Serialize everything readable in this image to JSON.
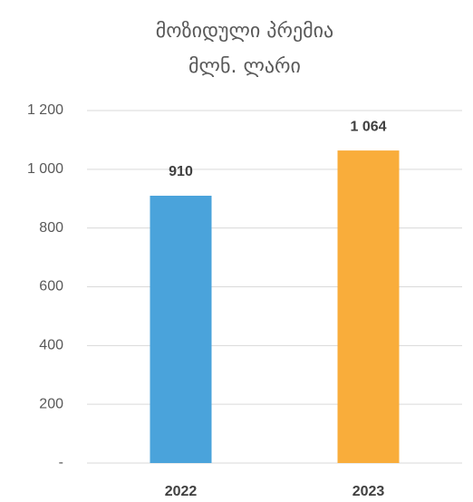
{
  "chart_data": {
    "type": "bar",
    "title": "მოზიდული პრემია",
    "subtitle": "მლნ. ლარი",
    "categories": [
      "2022",
      "2023"
    ],
    "values": [
      910,
      1064
    ],
    "value_labels": [
      "910",
      "1 064"
    ],
    "colors": [
      "#4aa3db",
      "#f9ad3b"
    ],
    "ylim": [
      0,
      1200
    ],
    "yticks": [
      {
        "value": 0,
        "label": "-"
      },
      200,
      400,
      600,
      800,
      {
        "value": 1000,
        "label": "1 000"
      },
      {
        "value": 1200,
        "label": "1 200"
      }
    ],
    "grid": true
  }
}
